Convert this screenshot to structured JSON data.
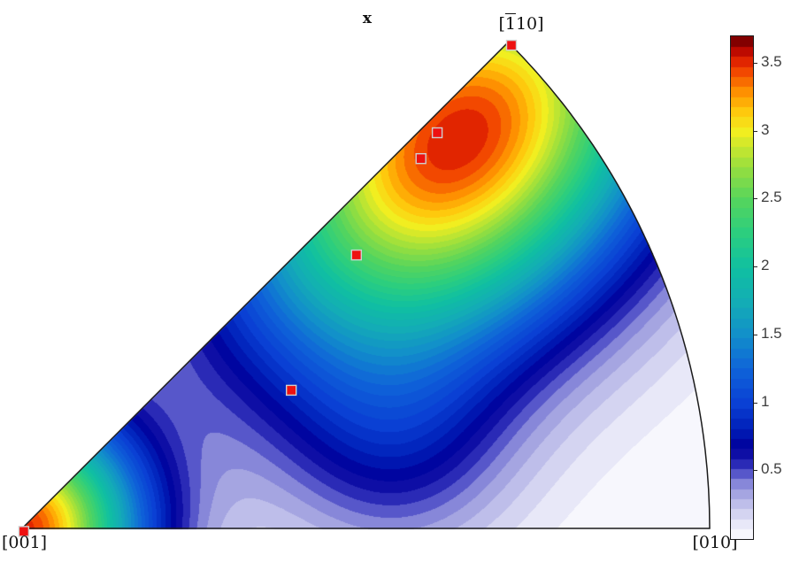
{
  "title": {
    "text": "x"
  },
  "corner_labels": {
    "bottom_left": "[001]",
    "bottom_right": "[010]",
    "top": {
      "open": "[",
      "overbar": "1",
      "rest": "10]"
    }
  },
  "colorbar": {
    "min": 0,
    "max": 3.7,
    "ticks": [
      {
        "value": 0.5,
        "label": "0.5"
      },
      {
        "value": 1,
        "label": "1"
      },
      {
        "value": 1.5,
        "label": "1.5"
      },
      {
        "value": 2,
        "label": "2"
      },
      {
        "value": 2.5,
        "label": "2.5"
      },
      {
        "value": 3,
        "label": "3"
      },
      {
        "value": 3.5,
        "label": "3.5"
      }
    ]
  },
  "chart_data": {
    "type": "contour",
    "subtype": "inverse-pole-figure-sector",
    "title": "x",
    "sector": {
      "angle_start_deg": 0,
      "angle_end_deg": 45,
      "corner_directions": {
        "center": "[001]",
        "arc_right": "[010]",
        "apex": "[-110]"
      }
    },
    "range": [
      0,
      3.7
    ],
    "contour_step": 0.074,
    "outline_color": "#1a1a1a",
    "colormap_stops": [
      [
        0.0,
        "#ffffff"
      ],
      [
        0.12,
        "#e6e6f7"
      ],
      [
        0.22,
        "#cacaee"
      ],
      [
        0.32,
        "#aaaae3"
      ],
      [
        0.42,
        "#8282d7"
      ],
      [
        0.5,
        "#4a4ac6"
      ],
      [
        0.58,
        "#1b1bae"
      ],
      [
        0.68,
        "#00009b"
      ],
      [
        0.82,
        "#0020ba"
      ],
      [
        1.0,
        "#0a40d4"
      ],
      [
        1.25,
        "#0f63d9"
      ],
      [
        1.5,
        "#128fca"
      ],
      [
        1.75,
        "#13adb5"
      ],
      [
        2.0,
        "#10c0a1"
      ],
      [
        2.25,
        "#2bce7f"
      ],
      [
        2.5,
        "#55d55d"
      ],
      [
        2.75,
        "#9bdf3d"
      ],
      [
        3.0,
        "#f2ee20"
      ],
      [
        3.15,
        "#fec80c"
      ],
      [
        3.3,
        "#fe8d00"
      ],
      [
        3.45,
        "#f14400"
      ],
      [
        3.55,
        "#d81400"
      ],
      [
        3.63,
        "#a00000"
      ],
      [
        3.7,
        "#600000"
      ]
    ],
    "field_components": [
      {
        "type": "aniso",
        "angle_deg": 41.8,
        "r_frac": 0.849,
        "amp": 3.55,
        "axis_deg": 45,
        "sigma_along_frac": 0.251,
        "sigma_perp_frac": 0.18
      },
      {
        "type": "iso",
        "angle_deg": 0,
        "r_frac": 0,
        "amp": 3.5,
        "sigma_frac": 0.1184
      },
      {
        "type": "iso",
        "angle_deg": 12.1,
        "r_frac": 0.56,
        "amp": 0.45,
        "sigma_frac": 0.1158
      }
    ],
    "markers": {
      "shape": "square",
      "size": 11,
      "fill": "#ee1111",
      "edge": "#cfcfcf",
      "points": [
        {
          "angle_deg": 44.63,
          "r_frac": 1.0
        },
        {
          "angle_deg": 43.62,
          "r_frac": 0.834
        },
        {
          "angle_deg": 42.83,
          "r_frac": 0.791
        },
        {
          "angle_deg": 39.27,
          "r_frac": 0.628
        },
        {
          "angle_deg": 27.16,
          "r_frac": 0.44
        },
        {
          "angle_deg": -60.0,
          "r_frac": 0.005
        }
      ]
    }
  }
}
